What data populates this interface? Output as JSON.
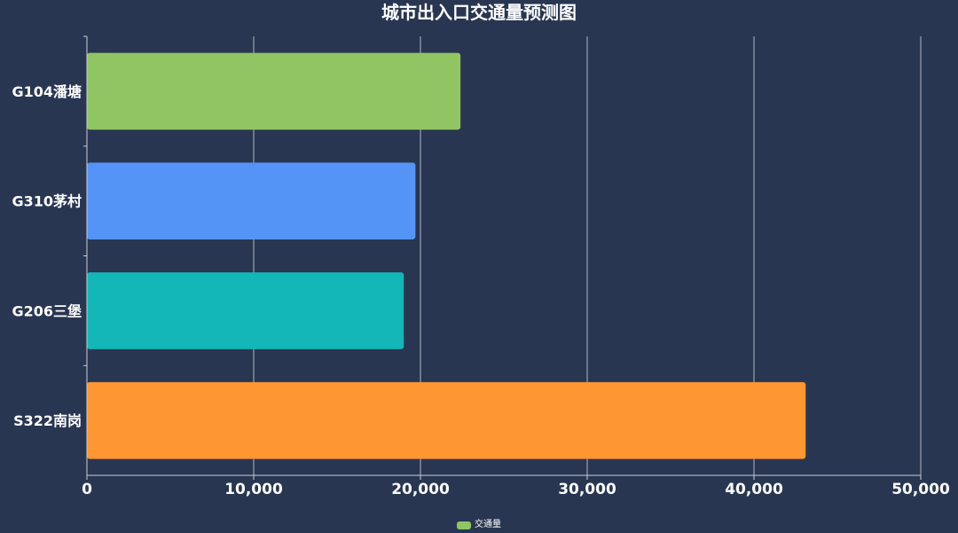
{
  "chart_data": {
    "type": "bar",
    "orientation": "horizontal",
    "title": "城市出入口交通量预测图",
    "categories": [
      "G104潘塘",
      "G310茅村",
      "G206三堡",
      "S322南岗"
    ],
    "series": [
      {
        "name": "交通量",
        "values": [
          22400,
          19700,
          19000,
          43100
        ],
        "colors": [
          "#91c564",
          "#5594f7",
          "#13b7b7",
          "#fe9632"
        ]
      }
    ],
    "xlim": [
      0,
      50000
    ],
    "xticks": [
      "0",
      "10,000",
      "20,000",
      "30,000",
      "40,000",
      "50,000"
    ],
    "xlabel": "",
    "ylabel": "",
    "grid": "vertical",
    "legend": "bottom-center",
    "colors": {
      "background": "#293651",
      "grid": "#c9cedb",
      "text": "#ffffff",
      "legend_swatch": "#91c564"
    }
  }
}
